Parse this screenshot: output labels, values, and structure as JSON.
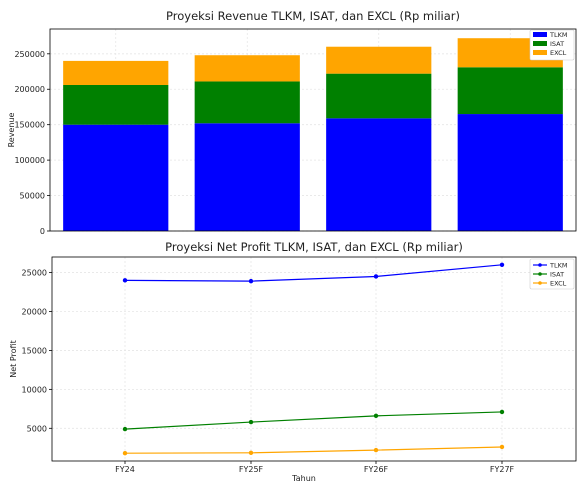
{
  "chart_data": [
    {
      "type": "bar",
      "stacked": true,
      "title": "Proyeksi Revenue TLKM, ISAT, dan EXCL (Rp miliar)",
      "xlabel": "",
      "ylabel": "Revenue",
      "categories": [
        "FY24",
        "FY25F",
        "FY26F",
        "FY27F"
      ],
      "ylim": [
        0,
        285000
      ],
      "yticks": [
        0,
        50000,
        100000,
        150000,
        200000,
        250000
      ],
      "grid": true,
      "legend": "top-right",
      "series": [
        {
          "name": "TLKM",
          "color": "#0000ff",
          "values": [
            150000,
            152000,
            159000,
            165000
          ]
        },
        {
          "name": "ISAT",
          "color": "#008000",
          "values": [
            56000,
            59000,
            63000,
            66000
          ]
        },
        {
          "name": "EXCL",
          "color": "#ffa500",
          "values": [
            34000,
            37000,
            38000,
            41000
          ]
        }
      ]
    },
    {
      "type": "line",
      "title": "Proyeksi Net Profit TLKM, ISAT, dan EXCL (Rp miliar)",
      "xlabel": "Tahun",
      "ylabel": "Net Profit",
      "categories": [
        "FY24",
        "FY25F",
        "FY26F",
        "FY27F"
      ],
      "ylim": [
        800,
        27000
      ],
      "yticks": [
        5000,
        10000,
        15000,
        20000,
        25000
      ],
      "grid": true,
      "legend": "top-right",
      "series": [
        {
          "name": "TLKM",
          "color": "#0000ff",
          "values": [
            24000,
            23900,
            24500,
            26000
          ]
        },
        {
          "name": "ISAT",
          "color": "#008000",
          "values": [
            4900,
            5800,
            6600,
            7100
          ]
        },
        {
          "name": "EXCL",
          "color": "#ffa500",
          "values": [
            1800,
            1850,
            2200,
            2600
          ]
        }
      ]
    }
  ]
}
